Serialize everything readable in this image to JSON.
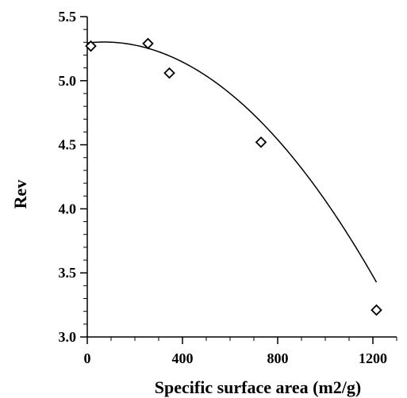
{
  "chart_data": {
    "type": "scatter",
    "title": "",
    "xlabel": "Specific surface area (m2/g)",
    "ylabel": "Rev",
    "xlim": [
      0,
      1300
    ],
    "ylim": [
      3.0,
      5.5
    ],
    "x_ticks": [
      0,
      400,
      800,
      1200
    ],
    "x_tick_labels": [
      "0",
      "400",
      "800",
      "1200"
    ],
    "y_ticks": [
      3.0,
      3.5,
      4.0,
      4.5,
      5.0,
      5.5
    ],
    "y_tick_labels": [
      "3.0",
      "3.5",
      "4.0",
      "4.5",
      "5.0",
      "5.5"
    ],
    "grid": false,
    "series": [
      {
        "marker": "diamond",
        "x": [
          15,
          255,
          345,
          730,
          1215
        ],
        "y": [
          5.27,
          5.29,
          5.06,
          4.52,
          3.21
        ]
      }
    ],
    "fit_curve": {
      "type": "quadratic",
      "x_range": [
        0,
        1215
      ],
      "coefficients": [
        5.295,
        0.0002,
        -1.43e-06
      ]
    }
  }
}
